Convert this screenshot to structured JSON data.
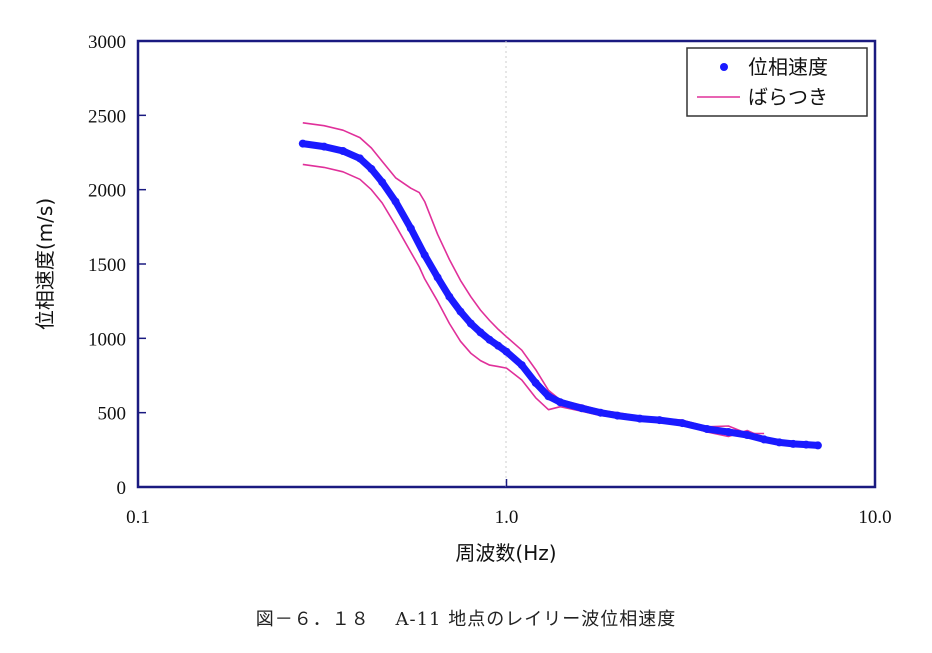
{
  "chart_data": {
    "type": "line",
    "x_scale": "log",
    "xlim": [
      0.1,
      10.0
    ],
    "ylim": [
      0,
      3000
    ],
    "grid": false,
    "legend_position": "top-right",
    "xlabel": "周波数(Hz)",
    "ylabel": "位相速度(m/s)",
    "x_tick_labels": [
      "0.1",
      "1.0",
      "10.0"
    ],
    "x_ticks": [
      0.1,
      1.0,
      10.0
    ],
    "y_ticks": [
      0,
      500,
      1000,
      1500,
      2000,
      2500,
      3000
    ],
    "y_tick_labels": [
      "0",
      "500",
      "1000",
      "1500",
      "2000",
      "2500",
      "3000"
    ],
    "series": [
      {
        "name": "位相速度",
        "style": "markers",
        "color": "#1a1aff",
        "x": [
          0.28,
          0.32,
          0.36,
          0.4,
          0.43,
          0.46,
          0.5,
          0.55,
          0.6,
          0.65,
          0.7,
          0.75,
          0.8,
          0.85,
          0.9,
          0.95,
          1.0,
          1.1,
          1.2,
          1.3,
          1.4,
          1.6,
          1.8,
          2.0,
          2.3,
          2.6,
          3.0,
          3.5,
          4.0,
          4.5,
          5.0,
          5.5,
          6.0,
          6.5,
          7.0
        ],
        "y": [
          2310,
          2290,
          2260,
          2210,
          2140,
          2050,
          1920,
          1740,
          1560,
          1410,
          1280,
          1180,
          1100,
          1040,
          990,
          950,
          910,
          820,
          700,
          610,
          570,
          530,
          500,
          480,
          460,
          450,
          430,
          390,
          370,
          350,
          320,
          300,
          290,
          285,
          280
        ]
      },
      {
        "name": "ばらつき",
        "style": "line",
        "color": "#e0309a",
        "x": [
          0.28,
          0.32,
          0.36,
          0.4,
          0.43,
          0.46,
          0.5,
          0.55,
          0.58,
          0.6,
          0.65,
          0.7,
          0.75,
          0.8,
          0.85,
          0.9,
          0.95,
          1.0,
          1.1,
          1.2,
          1.3,
          1.4,
          1.6,
          1.8,
          2.0,
          2.3,
          2.6,
          3.0,
          3.5,
          4.0,
          4.5,
          5.0
        ],
        "y": [
          2450,
          2430,
          2400,
          2350,
          2280,
          2190,
          2080,
          2010,
          1980,
          1920,
          1700,
          1530,
          1390,
          1280,
          1190,
          1120,
          1060,
          1010,
          920,
          790,
          650,
          585,
          550,
          515,
          500,
          475,
          460,
          450,
          405,
          410,
          360,
          360
        ]
      },
      {
        "name": "",
        "style": "line",
        "color": "#e0309a",
        "x": [
          0.28,
          0.32,
          0.36,
          0.4,
          0.43,
          0.46,
          0.5,
          0.55,
          0.58,
          0.6,
          0.65,
          0.7,
          0.75,
          0.8,
          0.85,
          0.9,
          0.95,
          1.0,
          1.1,
          1.2,
          1.3,
          1.4,
          1.6,
          1.8,
          2.0,
          2.3,
          2.6,
          3.0,
          3.5,
          4.0,
          4.5,
          5.0
        ],
        "y": [
          2170,
          2150,
          2120,
          2070,
          2000,
          1910,
          1760,
          1580,
          1480,
          1400,
          1250,
          1100,
          980,
          900,
          850,
          820,
          810,
          800,
          720,
          600,
          520,
          540,
          510,
          480,
          470,
          450,
          440,
          420,
          370,
          340,
          380,
          330
        ]
      }
    ]
  },
  "caption": "図－６．１８　 A-11 地点のレイリー波位相速度"
}
